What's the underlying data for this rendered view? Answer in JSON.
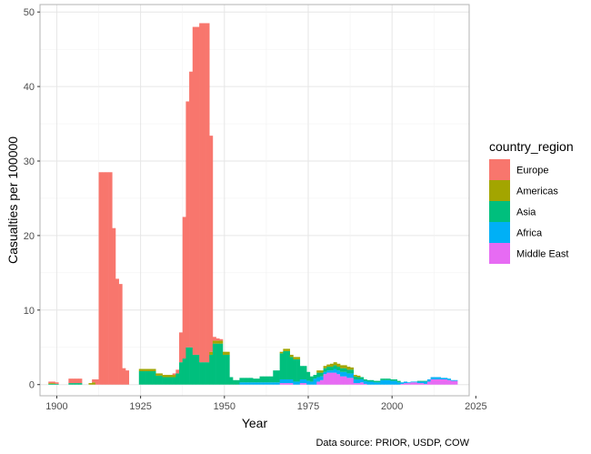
{
  "chart_data": {
    "type": "bar",
    "stacked": true,
    "xlabel": "Year",
    "ylabel": "Casualties per 100000",
    "xlim": [
      1895,
      2023
    ],
    "ylim": [
      -1.5,
      51
    ],
    "x_ticks": [
      1900,
      1925,
      1950,
      1975,
      2000,
      2025
    ],
    "y_ticks": [
      0,
      10,
      20,
      30,
      40,
      50
    ],
    "grid": true,
    "legend_title": "country_region",
    "legend_position": "right",
    "caption": "Data source: PRIOR, USDP, COW",
    "series": [
      {
        "name": "Europe",
        "color": "#F8766D",
        "points": [
          {
            "x": 1898,
            "y": 0.2
          },
          {
            "x": 1899,
            "y": 0.2
          },
          {
            "x": 1900,
            "y": 0.2
          },
          {
            "x": 1904,
            "y": 0.6
          },
          {
            "x": 1905,
            "y": 0.6
          },
          {
            "x": 1906,
            "y": 0.6
          },
          {
            "x": 1907,
            "y": 0.6
          },
          {
            "x": 1911,
            "y": 0.4
          },
          {
            "x": 1912,
            "y": 0.7
          },
          {
            "x": 1913,
            "y": 28.5
          },
          {
            "x": 1914,
            "y": 28.5
          },
          {
            "x": 1915,
            "y": 28.5
          },
          {
            "x": 1916,
            "y": 28.5
          },
          {
            "x": 1917,
            "y": 21.0
          },
          {
            "x": 1918,
            "y": 14.2
          },
          {
            "x": 1919,
            "y": 13.5
          },
          {
            "x": 1920,
            "y": 2.2
          },
          {
            "x": 1921,
            "y": 1.9
          },
          {
            "x": 1935,
            "y": 0.2
          },
          {
            "x": 1936,
            "y": 0.5
          },
          {
            "x": 1937,
            "y": 4.0
          },
          {
            "x": 1938,
            "y": 19.0
          },
          {
            "x": 1939,
            "y": 33.0
          },
          {
            "x": 1940,
            "y": 37.0
          },
          {
            "x": 1941,
            "y": 44.0
          },
          {
            "x": 1942,
            "y": 44.0
          },
          {
            "x": 1943,
            "y": 45.5
          },
          {
            "x": 1944,
            "y": 45.5
          },
          {
            "x": 1945,
            "y": 45.5
          },
          {
            "x": 1946,
            "y": 29.0
          },
          {
            "x": 1947,
            "y": 0.5
          },
          {
            "x": 1948,
            "y": 0.3
          },
          {
            "x": 1949,
            "y": 0.2
          }
        ]
      },
      {
        "name": "Americas",
        "color": "#A3A500",
        "points": [
          {
            "x": 1898,
            "y": 0.1
          },
          {
            "x": 1899,
            "y": 0.1
          },
          {
            "x": 1910,
            "y": 0.2
          },
          {
            "x": 1911,
            "y": 0.3
          },
          {
            "x": 1925,
            "y": 0.3
          },
          {
            "x": 1926,
            "y": 0.3
          },
          {
            "x": 1927,
            "y": 0.3
          },
          {
            "x": 1928,
            "y": 0.3
          },
          {
            "x": 1929,
            "y": 0.3
          },
          {
            "x": 1930,
            "y": 0.3
          },
          {
            "x": 1931,
            "y": 0.3
          },
          {
            "x": 1932,
            "y": 0.3
          },
          {
            "x": 1933,
            "y": 0.3
          },
          {
            "x": 1934,
            "y": 0.3
          },
          {
            "x": 1935,
            "y": 0.3
          },
          {
            "x": 1946,
            "y": 0.4
          },
          {
            "x": 1947,
            "y": 0.4
          },
          {
            "x": 1948,
            "y": 0.4
          },
          {
            "x": 1949,
            "y": 0.4
          },
          {
            "x": 1950,
            "y": 0.4
          },
          {
            "x": 1951,
            "y": 0.4
          },
          {
            "x": 1967,
            "y": 0.2
          },
          {
            "x": 1968,
            "y": 0.3
          },
          {
            "x": 1969,
            "y": 0.3
          },
          {
            "x": 1970,
            "y": 0.3
          },
          {
            "x": 1971,
            "y": 0.3
          },
          {
            "x": 1972,
            "y": 0.3
          },
          {
            "x": 1978,
            "y": 0.3
          },
          {
            "x": 1979,
            "y": 0.3
          },
          {
            "x": 1980,
            "y": 0.3
          },
          {
            "x": 1981,
            "y": 0.3
          },
          {
            "x": 1982,
            "y": 0.4
          },
          {
            "x": 1983,
            "y": 0.4
          },
          {
            "x": 1984,
            "y": 0.4
          },
          {
            "x": 1985,
            "y": 0.4
          },
          {
            "x": 1986,
            "y": 0.4
          },
          {
            "x": 1987,
            "y": 0.4
          },
          {
            "x": 1988,
            "y": 0.3
          },
          {
            "x": 1989,
            "y": 0.2
          },
          {
            "x": 1990,
            "y": 0.2
          }
        ]
      },
      {
        "name": "Asia",
        "color": "#00BF7D",
        "points": [
          {
            "x": 1898,
            "y": 0.1
          },
          {
            "x": 1899,
            "y": 0.1
          },
          {
            "x": 1900,
            "y": 0.1
          },
          {
            "x": 1904,
            "y": 0.2
          },
          {
            "x": 1905,
            "y": 0.2
          },
          {
            "x": 1906,
            "y": 0.2
          },
          {
            "x": 1907,
            "y": 0.2
          },
          {
            "x": 1925,
            "y": 1.8
          },
          {
            "x": 1926,
            "y": 1.8
          },
          {
            "x": 1927,
            "y": 1.8
          },
          {
            "x": 1928,
            "y": 1.8
          },
          {
            "x": 1929,
            "y": 1.8
          },
          {
            "x": 1930,
            "y": 1.2
          },
          {
            "x": 1931,
            "y": 1.2
          },
          {
            "x": 1932,
            "y": 1.0
          },
          {
            "x": 1933,
            "y": 1.0
          },
          {
            "x": 1934,
            "y": 1.0
          },
          {
            "x": 1935,
            "y": 1.0
          },
          {
            "x": 1936,
            "y": 1.5
          },
          {
            "x": 1937,
            "y": 3.0
          },
          {
            "x": 1938,
            "y": 3.5
          },
          {
            "x": 1939,
            "y": 5.0
          },
          {
            "x": 1940,
            "y": 5.0
          },
          {
            "x": 1941,
            "y": 4.0
          },
          {
            "x": 1942,
            "y": 4.0
          },
          {
            "x": 1943,
            "y": 3.0
          },
          {
            "x": 1944,
            "y": 3.0
          },
          {
            "x": 1945,
            "y": 3.0
          },
          {
            "x": 1946,
            "y": 4.0
          },
          {
            "x": 1947,
            "y": 5.5
          },
          {
            "x": 1948,
            "y": 5.5
          },
          {
            "x": 1949,
            "y": 5.5
          },
          {
            "x": 1950,
            "y": 4.0
          },
          {
            "x": 1951,
            "y": 4.0
          },
          {
            "x": 1952,
            "y": 1.0
          },
          {
            "x": 1953,
            "y": 0.6
          },
          {
            "x": 1954,
            "y": 0.6
          },
          {
            "x": 1955,
            "y": 0.6
          },
          {
            "x": 1956,
            "y": 0.6
          },
          {
            "x": 1957,
            "y": 0.6
          },
          {
            "x": 1958,
            "y": 0.6
          },
          {
            "x": 1959,
            "y": 0.5
          },
          {
            "x": 1960,
            "y": 0.5
          },
          {
            "x": 1961,
            "y": 0.8
          },
          {
            "x": 1962,
            "y": 0.8
          },
          {
            "x": 1963,
            "y": 0.8
          },
          {
            "x": 1964,
            "y": 0.8
          },
          {
            "x": 1965,
            "y": 1.6
          },
          {
            "x": 1966,
            "y": 1.6
          },
          {
            "x": 1967,
            "y": 3.5
          },
          {
            "x": 1968,
            "y": 3.8
          },
          {
            "x": 1969,
            "y": 3.8
          },
          {
            "x": 1970,
            "y": 3.0
          },
          {
            "x": 1971,
            "y": 3.0
          },
          {
            "x": 1972,
            "y": 3.0
          },
          {
            "x": 1973,
            "y": 1.8
          },
          {
            "x": 1974,
            "y": 1.8
          },
          {
            "x": 1975,
            "y": 1.2
          },
          {
            "x": 1976,
            "y": 0.7
          },
          {
            "x": 1977,
            "y": 0.5
          },
          {
            "x": 1978,
            "y": 0.6
          },
          {
            "x": 1979,
            "y": 0.5
          },
          {
            "x": 1980,
            "y": 0.5
          },
          {
            "x": 1981,
            "y": 0.5
          },
          {
            "x": 1982,
            "y": 0.5
          },
          {
            "x": 1983,
            "y": 0.5
          },
          {
            "x": 1984,
            "y": 0.5
          },
          {
            "x": 1985,
            "y": 0.5
          },
          {
            "x": 1986,
            "y": 0.5
          },
          {
            "x": 1987,
            "y": 0.5
          },
          {
            "x": 1988,
            "y": 0.5
          },
          {
            "x": 1989,
            "y": 0.4
          },
          {
            "x": 1990,
            "y": 0.3
          },
          {
            "x": 1991,
            "y": 0.3
          },
          {
            "x": 1992,
            "y": 0.2
          },
          {
            "x": 1993,
            "y": 0.2
          },
          {
            "x": 1994,
            "y": 0.2
          },
          {
            "x": 1995,
            "y": 0.2
          },
          {
            "x": 1996,
            "y": 0.2
          },
          {
            "x": 1997,
            "y": 0.2
          },
          {
            "x": 1998,
            "y": 0.2
          },
          {
            "x": 1999,
            "y": 0.2
          },
          {
            "x": 2000,
            "y": 0.2
          },
          {
            "x": 2001,
            "y": 0.2
          },
          {
            "x": 2002,
            "y": 0.2
          },
          {
            "x": 2008,
            "y": 0.1
          },
          {
            "x": 2009,
            "y": 0.1
          },
          {
            "x": 2010,
            "y": 0.1
          }
        ]
      },
      {
        "name": "Africa",
        "color": "#00B0F6",
        "points": [
          {
            "x": 1955,
            "y": 0.3
          },
          {
            "x": 1956,
            "y": 0.3
          },
          {
            "x": 1957,
            "y": 0.3
          },
          {
            "x": 1958,
            "y": 0.3
          },
          {
            "x": 1959,
            "y": 0.3
          },
          {
            "x": 1960,
            "y": 0.3
          },
          {
            "x": 1961,
            "y": 0.3
          },
          {
            "x": 1962,
            "y": 0.3
          },
          {
            "x": 1963,
            "y": 0.3
          },
          {
            "x": 1964,
            "y": 0.3
          },
          {
            "x": 1965,
            "y": 0.3
          },
          {
            "x": 1966,
            "y": 0.3
          },
          {
            "x": 1967,
            "y": 0.5
          },
          {
            "x": 1968,
            "y": 0.5
          },
          {
            "x": 1969,
            "y": 0.5
          },
          {
            "x": 1970,
            "y": 0.5
          },
          {
            "x": 1971,
            "y": 0.4
          },
          {
            "x": 1972,
            "y": 0.4
          },
          {
            "x": 1973,
            "y": 0.5
          },
          {
            "x": 1974,
            "y": 0.5
          },
          {
            "x": 1975,
            "y": 0.5
          },
          {
            "x": 1976,
            "y": 0.4
          },
          {
            "x": 1977,
            "y": 0.8
          },
          {
            "x": 1978,
            "y": 0.6
          },
          {
            "x": 1979,
            "y": 0.5
          },
          {
            "x": 1980,
            "y": 0.3
          },
          {
            "x": 1981,
            "y": 0.3
          },
          {
            "x": 1982,
            "y": 0.3
          },
          {
            "x": 1983,
            "y": 0.5
          },
          {
            "x": 1984,
            "y": 0.5
          },
          {
            "x": 1985,
            "y": 0.6
          },
          {
            "x": 1986,
            "y": 0.6
          },
          {
            "x": 1987,
            "y": 0.6
          },
          {
            "x": 1988,
            "y": 0.6
          },
          {
            "x": 1989,
            "y": 0.5
          },
          {
            "x": 1990,
            "y": 0.5
          },
          {
            "x": 1991,
            "y": 0.4
          },
          {
            "x": 1992,
            "y": 0.4
          },
          {
            "x": 1993,
            "y": 0.4
          },
          {
            "x": 1994,
            "y": 0.4
          },
          {
            "x": 1995,
            "y": 0.3
          },
          {
            "x": 1996,
            "y": 0.3
          },
          {
            "x": 1997,
            "y": 0.6
          },
          {
            "x": 1998,
            "y": 0.6
          },
          {
            "x": 1999,
            "y": 0.6
          },
          {
            "x": 2000,
            "y": 0.5
          },
          {
            "x": 2001,
            "y": 0.5
          },
          {
            "x": 2002,
            "y": 0.3
          },
          {
            "x": 2003,
            "y": 0.2
          },
          {
            "x": 2004,
            "y": 0.2
          },
          {
            "x": 2005,
            "y": 0.1
          },
          {
            "x": 2006,
            "y": 0.1
          },
          {
            "x": 2007,
            "y": 0.1
          },
          {
            "x": 2008,
            "y": 0.2
          },
          {
            "x": 2009,
            "y": 0.2
          },
          {
            "x": 2010,
            "y": 0.3
          },
          {
            "x": 2011,
            "y": 0.3
          },
          {
            "x": 2012,
            "y": 0.3
          },
          {
            "x": 2013,
            "y": 0.3
          },
          {
            "x": 2014,
            "y": 0.3
          },
          {
            "x": 2015,
            "y": 0.2
          },
          {
            "x": 2016,
            "y": 0.2
          },
          {
            "x": 2017,
            "y": 0.2
          },
          {
            "x": 2018,
            "y": 0.1
          },
          {
            "x": 2019,
            "y": 0.1
          }
        ]
      },
      {
        "name": "Middle East",
        "color": "#E76BF3",
        "points": [
          {
            "x": 1967,
            "y": 0.2
          },
          {
            "x": 1968,
            "y": 0.2
          },
          {
            "x": 1969,
            "y": 0.2
          },
          {
            "x": 1970,
            "y": 0.2
          },
          {
            "x": 1973,
            "y": 0.2
          },
          {
            "x": 1974,
            "y": 0.2
          },
          {
            "x": 1978,
            "y": 0.4
          },
          {
            "x": 1979,
            "y": 0.6
          },
          {
            "x": 1980,
            "y": 1.4
          },
          {
            "x": 1981,
            "y": 1.6
          },
          {
            "x": 1982,
            "y": 1.6
          },
          {
            "x": 1983,
            "y": 1.6
          },
          {
            "x": 1984,
            "y": 1.4
          },
          {
            "x": 1985,
            "y": 1.1
          },
          {
            "x": 1986,
            "y": 1.1
          },
          {
            "x": 1987,
            "y": 0.9
          },
          {
            "x": 1988,
            "y": 0.9
          },
          {
            "x": 1989,
            "y": 0.2
          },
          {
            "x": 1990,
            "y": 0.2
          },
          {
            "x": 1991,
            "y": 0.3
          },
          {
            "x": 1992,
            "y": 0.1
          },
          {
            "x": 2003,
            "y": 0.1
          },
          {
            "x": 2004,
            "y": 0.2
          },
          {
            "x": 2005,
            "y": 0.2
          },
          {
            "x": 2006,
            "y": 0.3
          },
          {
            "x": 2007,
            "y": 0.3
          },
          {
            "x": 2008,
            "y": 0.2
          },
          {
            "x": 2009,
            "y": 0.2
          },
          {
            "x": 2010,
            "y": 0.1
          },
          {
            "x": 2011,
            "y": 0.4
          },
          {
            "x": 2012,
            "y": 0.7
          },
          {
            "x": 2013,
            "y": 0.7
          },
          {
            "x": 2014,
            "y": 0.7
          },
          {
            "x": 2015,
            "y": 0.7
          },
          {
            "x": 2016,
            "y": 0.7
          },
          {
            "x": 2017,
            "y": 0.6
          },
          {
            "x": 2018,
            "y": 0.5
          },
          {
            "x": 2019,
            "y": 0.5
          }
        ]
      }
    ]
  }
}
